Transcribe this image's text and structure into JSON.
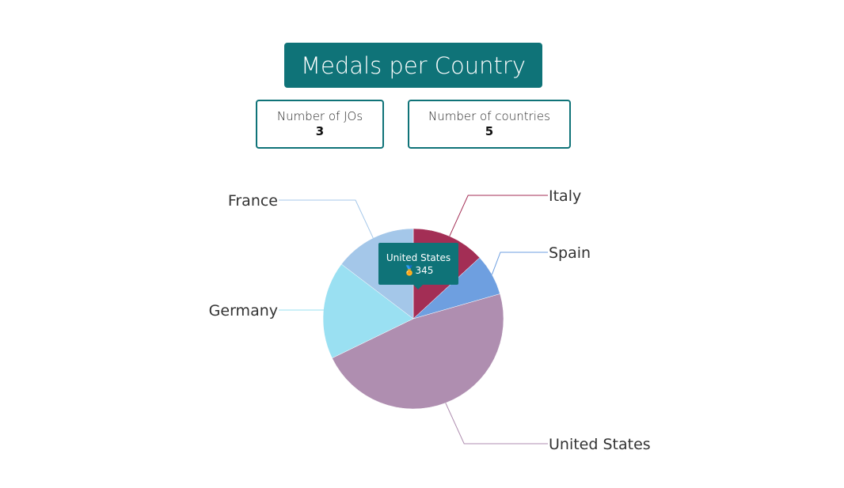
{
  "header": {
    "title": "Medals per Country"
  },
  "stats": {
    "jos_label": "Number of JOs",
    "jos_value": "3",
    "countries_label": "Number of countries",
    "countries_value": "5"
  },
  "colors": {
    "accent": "#0f7378"
  },
  "tooltip": {
    "name": "United States",
    "icon": "medal-icon",
    "value": "345"
  },
  "chart_data": {
    "type": "pie",
    "title": "Medals per Country",
    "slices": [
      {
        "label": "Italy",
        "value": 96,
        "color": "#a32e55"
      },
      {
        "label": "Spain",
        "value": 54,
        "color": "#6e9fe0"
      },
      {
        "label": "United States",
        "value": 345,
        "color": "#af8eb0"
      },
      {
        "label": "Germany",
        "value": 128,
        "color": "#9ae0f2"
      },
      {
        "label": "France",
        "value": 107,
        "color": "#a4c7e9"
      }
    ]
  }
}
